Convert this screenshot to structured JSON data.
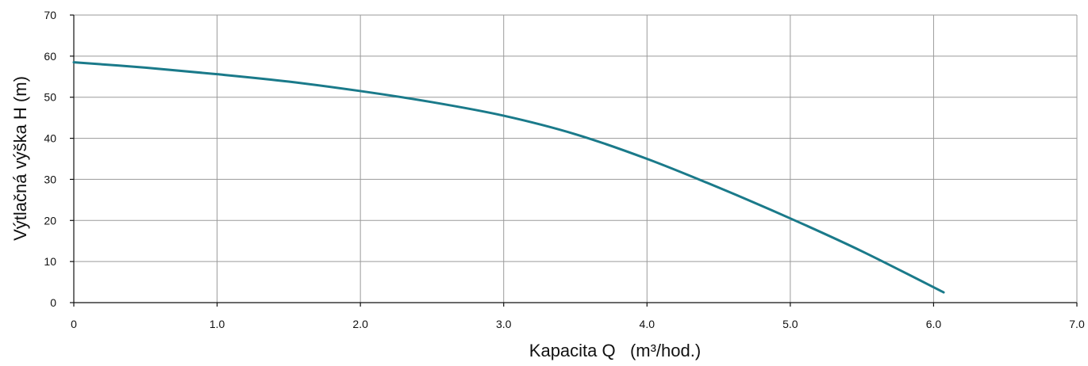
{
  "chart_data": {
    "type": "line",
    "title": "",
    "xlabel": "Kapacita Q   (m³/hod.)",
    "ylabel": "Výtlačná výška H (m)",
    "xlim": [
      0,
      7.0
    ],
    "ylim": [
      0,
      70
    ],
    "x_ticks": [
      "0",
      "1.0",
      "2.0",
      "3.0",
      "4.0",
      "5.0",
      "6.0",
      "7.0"
    ],
    "x_tick_values": [
      0,
      1,
      2,
      3,
      4,
      5,
      6,
      7
    ],
    "y_ticks": [
      "0",
      "10",
      "20",
      "30",
      "40",
      "50",
      "60",
      "70"
    ],
    "y_tick_values": [
      0,
      10,
      20,
      30,
      40,
      50,
      60,
      70
    ],
    "grid": true,
    "legend": "none",
    "series": [
      {
        "color": "#1a7a8a",
        "x": [
          0,
          0.5,
          1.0,
          1.5,
          2.0,
          2.5,
          3.0,
          3.5,
          4.0,
          4.5,
          5.0,
          5.5,
          6.07
        ],
        "y": [
          58.5,
          57.2,
          55.6,
          53.8,
          51.5,
          48.8,
          45.5,
          41.0,
          35.0,
          28.0,
          20.5,
          12.5,
          2.5
        ]
      }
    ]
  }
}
